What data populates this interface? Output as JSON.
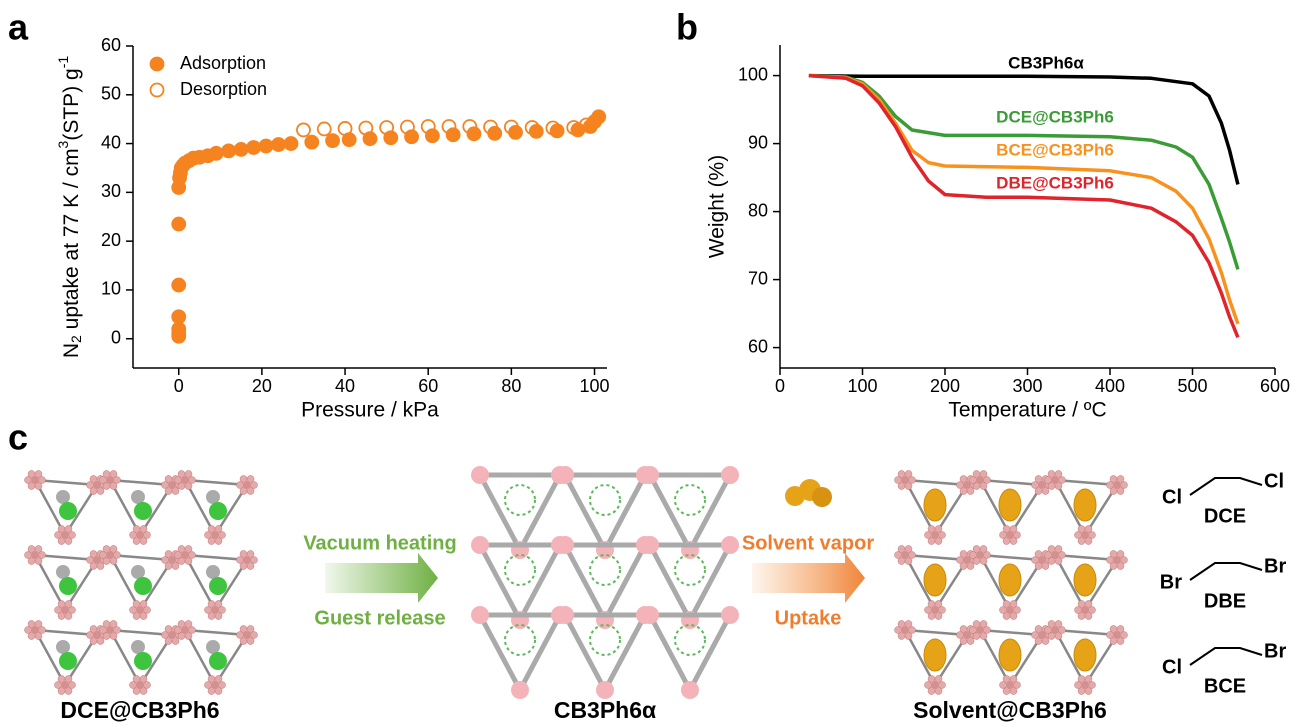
{
  "chart_data": [
    {
      "type": "scatter",
      "panel": "a",
      "xlabel": "Pressure / kPa",
      "ylabel": [
        "N",
        "2",
        " uptake at 77 K / cm",
        "3",
        "(STP) g",
        "-1"
      ],
      "xlim": [
        -11,
        103
      ],
      "ylim": [
        -6,
        60
      ],
      "xticks": [
        0,
        20,
        40,
        60,
        80,
        100
      ],
      "yticks": [
        0,
        10,
        20,
        30,
        40,
        50,
        60
      ],
      "series": [
        {
          "name": "Adsorption",
          "color": "#f5831f",
          "marker": "filled",
          "x": [
            0,
            0,
            0,
            0,
            0,
            0,
            0,
            0.2,
            0.4,
            0.6,
            1,
            1.5,
            2.5,
            3.5,
            5,
            7,
            9,
            12,
            15,
            18,
            21,
            24,
            27,
            32,
            37,
            41,
            46,
            51,
            56,
            61,
            66,
            71,
            76,
            81,
            86,
            91,
            96,
            99,
            100,
            101
          ],
          "values": [
            0.5,
            1,
            2,
            4.5,
            11,
            23.5,
            31,
            33,
            34,
            35,
            35.5,
            36,
            36.5,
            37,
            37.2,
            37.5,
            38,
            38.5,
            38.8,
            39.2,
            39.5,
            39.8,
            40,
            40.3,
            40.6,
            40.8,
            41,
            41.2,
            41.4,
            41.6,
            41.8,
            42,
            42.1,
            42.3,
            42.5,
            42.6,
            42.8,
            43.5,
            44.5,
            45.5
          ]
        },
        {
          "name": "Desorption",
          "color": "#f5831f",
          "marker": "open",
          "x": [
            30,
            35,
            40,
            45,
            50,
            55,
            60,
            65,
            70,
            75,
            80,
            85,
            90,
            95,
            98,
            100
          ],
          "values": [
            42.8,
            43,
            43.1,
            43.2,
            43.3,
            43.4,
            43.5,
            43.5,
            43.5,
            43.4,
            43.4,
            43.3,
            43.2,
            43.3,
            43.8,
            44.5
          ]
        }
      ]
    },
    {
      "type": "line",
      "panel": "b",
      "xlabel": "Temperature / ºC",
      "ylabel": "Weight (%)",
      "xlim": [
        0,
        600
      ],
      "ylim": [
        57,
        104.5
      ],
      "xticks": [
        0,
        100,
        200,
        300,
        400,
        500,
        600
      ],
      "yticks": [
        60,
        70,
        80,
        90,
        100
      ],
      "series": [
        {
          "name": "CB3Ph6α",
          "color": "#000000",
          "x": [
            35,
            100,
            200,
            300,
            400,
            450,
            500,
            520,
            535,
            545,
            555
          ],
          "values": [
            100,
            99.9,
            99.9,
            99.9,
            99.8,
            99.6,
            98.8,
            97,
            93,
            89,
            84
          ]
        },
        {
          "name": "DCE@CB3Ph6",
          "color": "#3a9c35",
          "x": [
            35,
            80,
            100,
            120,
            140,
            160,
            200,
            300,
            400,
            450,
            480,
            500,
            520,
            535,
            545,
            555
          ],
          "values": [
            100,
            99.8,
            99,
            97,
            94,
            92,
            91.2,
            91.2,
            91,
            90.5,
            89.5,
            88,
            84,
            79,
            75.5,
            71.5
          ]
        },
        {
          "name": "BCE@CB3Ph6",
          "color": "#f7921e",
          "x": [
            35,
            80,
            100,
            120,
            140,
            160,
            180,
            200,
            300,
            400,
            450,
            480,
            500,
            520,
            535,
            545,
            555
          ],
          "values": [
            100,
            99.7,
            98.8,
            96.5,
            93,
            89,
            87.2,
            86.7,
            86.5,
            86,
            85,
            83,
            80.5,
            76,
            71,
            67,
            63.5
          ]
        },
        {
          "name": "DBE@CB3Ph6",
          "color": "#e0242b",
          "x": [
            35,
            80,
            100,
            120,
            140,
            160,
            180,
            200,
            250,
            300,
            400,
            450,
            480,
            500,
            520,
            535,
            545,
            555
          ],
          "values": [
            100,
            99.6,
            98.5,
            96,
            92.5,
            88,
            84.5,
            82.5,
            82.1,
            82.1,
            81.7,
            80.5,
            78.5,
            76.5,
            72.5,
            68,
            64.5,
            61.5
          ]
        }
      ]
    }
  ],
  "diagram": {
    "panel": "c",
    "step1": {
      "top": "Vacuum heating",
      "bottom": "Guest release"
    },
    "step2": {
      "top": "Solvent vapor",
      "bottom": "Uptake"
    },
    "captions": [
      "DCE@CB3Ph6",
      "CB3Ph6α",
      "Solvent@CB3Ph6"
    ],
    "molecules": [
      {
        "left": "Cl",
        "right": "Cl",
        "name": "DCE"
      },
      {
        "left": "Br",
        "right": "Br",
        "name": "DBE"
      },
      {
        "left": "Cl",
        "right": "Br",
        "name": "BCE"
      }
    ]
  }
}
